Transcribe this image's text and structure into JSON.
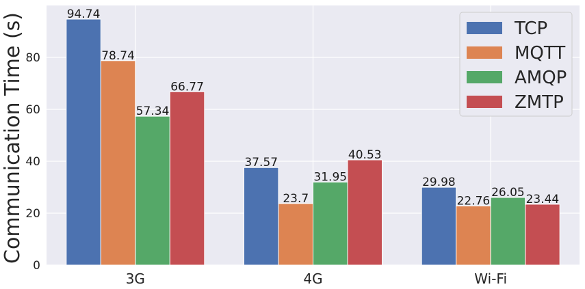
{
  "chart_data": {
    "type": "bar",
    "title": "",
    "xlabel": "",
    "ylabel": "Communication Time (s)",
    "categories": [
      "3G",
      "4G",
      "Wi-Fi"
    ],
    "series": [
      {
        "name": "TCP",
        "color": "#4c72b0",
        "values": [
          94.74,
          37.57,
          29.98
        ],
        "labels": [
          "94.74",
          "37.57",
          "29.98"
        ]
      },
      {
        "name": "MQTT",
        "color": "#dd8452",
        "values": [
          78.74,
          23.7,
          22.76
        ],
        "labels": [
          "78.74",
          "23.7",
          "22.76"
        ]
      },
      {
        "name": "AMQP",
        "color": "#55a868",
        "values": [
          57.34,
          31.95,
          26.05
        ],
        "labels": [
          "57.34",
          "31.95",
          "26.05"
        ]
      },
      {
        "name": "ZMTP",
        "color": "#c44e52",
        "values": [
          66.77,
          40.53,
          23.44
        ],
        "labels": [
          "66.77",
          "40.53",
          "23.44"
        ]
      }
    ],
    "ylim": [
      0,
      100
    ],
    "yticks": [
      0,
      20,
      40,
      60,
      80
    ],
    "grid": true,
    "legend_position": "top-right",
    "background": "#eaeaf2"
  }
}
